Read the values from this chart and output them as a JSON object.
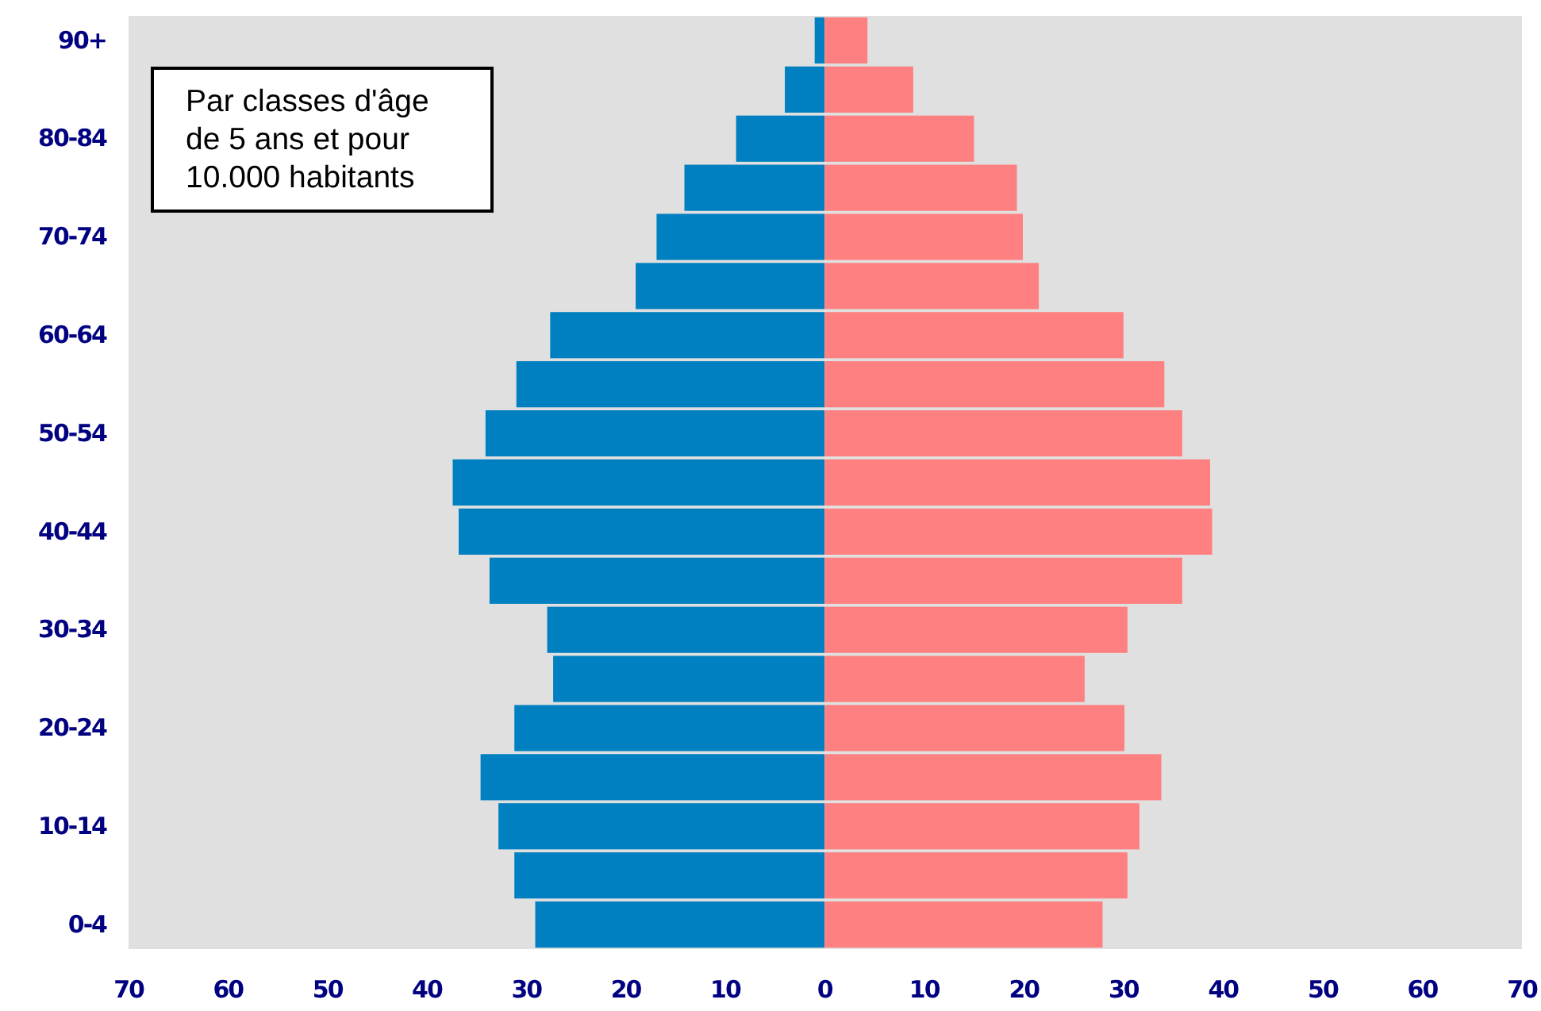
{
  "chart_data": [
    {
      "type": "bar",
      "orientation": "horizontal",
      "categories": [
        "90+",
        null,
        "80-84",
        null,
        "70-74",
        null,
        "60-64",
        null,
        "50-54",
        null,
        "40-44",
        null,
        "30-34",
        null,
        "20-24",
        null,
        "10-14",
        null,
        "0-4"
      ],
      "series": [
        {
          "color": "#0080c0",
          "values": [
            1.0,
            4.0,
            8.9,
            14.1,
            16.9,
            19.0,
            27.6,
            31.0,
            34.1,
            37.4,
            36.8,
            33.7,
            27.9,
            27.3,
            31.2,
            34.6,
            32.8,
            31.2,
            29.1
          ]
        }
      ],
      "xlim": [
        70,
        0
      ],
      "xticks": [
        70,
        60,
        50,
        40,
        30,
        20,
        10
      ],
      "annotations": [
        "Par classes d'âge de 5 ans et pour 10.000 habitants"
      ]
    },
    {
      "type": "bar",
      "orientation": "horizontal",
      "categories": [
        null,
        null,
        null,
        null,
        null,
        null,
        null,
        null,
        null,
        null,
        null,
        null,
        null,
        null,
        null,
        null,
        null,
        null,
        null
      ],
      "series": [
        {
          "color": "#ff8080",
          "values": [
            4.3,
            8.9,
            15.0,
            19.3,
            19.9,
            21.5,
            30.0,
            34.1,
            35.9,
            38.7,
            38.9,
            35.9,
            30.4,
            26.1,
            30.1,
            33.8,
            31.6,
            30.4,
            27.9
          ]
        }
      ],
      "xlim": [
        0,
        70
      ],
      "xticks": [
        0,
        10,
        20,
        30,
        40,
        50,
        60,
        70
      ],
      "tick_labels": "x"
    }
  ]
}
